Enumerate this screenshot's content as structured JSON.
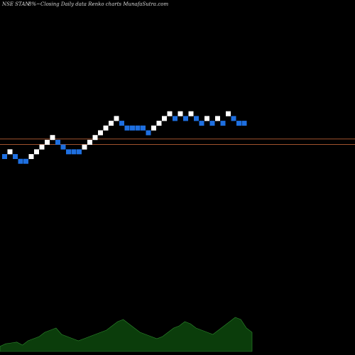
{
  "header": {
    "symbol": "NSE STAN",
    "change": "8%~",
    "description": "Closing Daily data  Renko  charts MunafaSutra.com"
  },
  "colors": {
    "background": "#000000",
    "up_brick": "#ffffff",
    "down_brick": "#1e6fe0",
    "level_line": "#a0522d",
    "volume_fill": "#0b3d0b",
    "volume_line": "#2e8b2e"
  },
  "chart_data": {
    "type": "renko",
    "x_axis": "brick index",
    "y_axis": "brick level",
    "bricks": [
      {
        "level": 0,
        "dir": "down"
      },
      {
        "level": 1,
        "dir": "up"
      },
      {
        "level": 0,
        "dir": "down"
      },
      {
        "level": -1,
        "dir": "down"
      },
      {
        "level": -1,
        "dir": "down"
      },
      {
        "level": 0,
        "dir": "up"
      },
      {
        "level": 1,
        "dir": "up"
      },
      {
        "level": 2,
        "dir": "up"
      },
      {
        "level": 3,
        "dir": "up"
      },
      {
        "level": 4,
        "dir": "up"
      },
      {
        "level": 3,
        "dir": "down"
      },
      {
        "level": 2,
        "dir": "down"
      },
      {
        "level": 1,
        "dir": "down"
      },
      {
        "level": 1,
        "dir": "down"
      },
      {
        "level": 1,
        "dir": "down"
      },
      {
        "level": 2,
        "dir": "up"
      },
      {
        "level": 3,
        "dir": "up"
      },
      {
        "level": 4,
        "dir": "up"
      },
      {
        "level": 5,
        "dir": "up"
      },
      {
        "level": 6,
        "dir": "up"
      },
      {
        "level": 7,
        "dir": "up"
      },
      {
        "level": 8,
        "dir": "up"
      },
      {
        "level": 7,
        "dir": "down"
      },
      {
        "level": 6,
        "dir": "down"
      },
      {
        "level": 6,
        "dir": "down"
      },
      {
        "level": 6,
        "dir": "down"
      },
      {
        "level": 6,
        "dir": "down"
      },
      {
        "level": 5,
        "dir": "down"
      },
      {
        "level": 6,
        "dir": "up"
      },
      {
        "level": 7,
        "dir": "up"
      },
      {
        "level": 8,
        "dir": "up"
      },
      {
        "level": 9,
        "dir": "up"
      },
      {
        "level": 8,
        "dir": "down"
      },
      {
        "level": 9,
        "dir": "up"
      },
      {
        "level": 8,
        "dir": "down"
      },
      {
        "level": 9,
        "dir": "up"
      },
      {
        "level": 8,
        "dir": "down"
      },
      {
        "level": 7,
        "dir": "down"
      },
      {
        "level": 8,
        "dir": "up"
      },
      {
        "level": 7,
        "dir": "down"
      },
      {
        "level": 8,
        "dir": "up"
      },
      {
        "level": 7,
        "dir": "down"
      },
      {
        "level": 9,
        "dir": "up"
      },
      {
        "level": 8,
        "dir": "down"
      },
      {
        "level": 7,
        "dir": "down"
      },
      {
        "level": 7,
        "dir": "down"
      }
    ],
    "level_lines": [
      4,
      0
    ],
    "volume_profile": [
      0.12,
      0.18,
      0.2,
      0.22,
      0.15,
      0.25,
      0.3,
      0.35,
      0.45,
      0.5,
      0.55,
      0.4,
      0.35,
      0.3,
      0.25,
      0.3,
      0.35,
      0.4,
      0.45,
      0.5,
      0.6,
      0.7,
      0.75,
      0.65,
      0.55,
      0.45,
      0.4,
      0.35,
      0.3,
      0.35,
      0.45,
      0.55,
      0.6,
      0.7,
      0.65,
      0.55,
      0.5,
      0.45,
      0.4,
      0.5,
      0.6,
      0.7,
      0.8,
      0.75,
      0.55,
      0.45
    ]
  }
}
